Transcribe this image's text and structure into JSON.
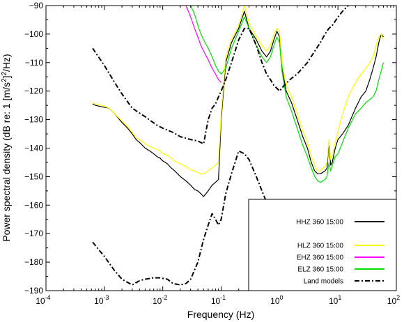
{
  "chart_data": {
    "type": "line",
    "xscale": "log",
    "xlim": [
      0.0001,
      100
    ],
    "ylim": [
      -190,
      -90
    ],
    "xlabel": "Frequency (Hz)",
    "ylabel_prefix": "Power spectral density (dB re: 1 [m/s",
    "ylabel_sup": "2",
    "ylabel_mid": "]",
    "ylabel_sup2": "2",
    "ylabel_suffix": "/Hz)",
    "x_tick_bases": [
      "10",
      "10",
      "10",
      "10",
      "10",
      "10",
      "10"
    ],
    "x_tick_exps": [
      "-4",
      "-3",
      "-2",
      "-1",
      "0",
      "1",
      "2"
    ],
    "y_ticks": [
      -90,
      -100,
      -110,
      -120,
      -130,
      -140,
      -150,
      -160,
      -170,
      -180,
      -190
    ],
    "grid": false,
    "legend_position": "lower-right",
    "series": [
      {
        "name": "HHZ 360 15:00",
        "color": "#000000",
        "style": "solid",
        "x": [
          0.00063,
          0.0007,
          0.0009,
          0.0012,
          0.0015,
          0.002,
          0.0025,
          0.003,
          0.0035,
          0.004,
          0.005,
          0.006,
          0.007,
          0.008,
          0.009,
          0.01,
          0.012,
          0.014,
          0.016,
          0.018,
          0.02,
          0.025,
          0.03,
          0.035,
          0.04,
          0.045,
          0.05,
          0.06,
          0.07,
          0.08,
          0.09,
          0.1,
          0.12,
          0.15,
          0.2,
          0.25,
          0.3,
          0.4,
          0.5,
          0.6,
          0.7,
          0.8,
          0.9,
          1.0,
          1.1,
          1.3,
          1.6,
          2.0,
          2.5,
          3.0,
          3.5,
          4.0,
          4.5,
          5.0,
          5.5,
          6.0,
          6.5,
          7.0,
          7.5,
          8.0,
          9.0,
          10,
          12,
          15,
          20,
          25,
          30,
          35,
          40,
          45,
          50,
          55,
          60
        ],
        "y": [
          -124.5,
          -125,
          -125.5,
          -126,
          -128,
          -131,
          -133,
          -135,
          -137,
          -138,
          -140,
          -141,
          -142,
          -143,
          -143.5,
          -144.5,
          -145.5,
          -147,
          -148,
          -149,
          -150,
          -151.5,
          -153,
          -154.5,
          -155,
          -156,
          -157,
          -155,
          -153,
          -152,
          -151,
          -130,
          -110,
          -103,
          -98,
          -92,
          -98,
          -102,
          -106,
          -108,
          -106,
          -102,
          -99,
          -101,
          -112,
          -120,
          -124,
          -130,
          -136,
          -140,
          -145,
          -148,
          -149,
          -149,
          -148.5,
          -148,
          -147,
          -138,
          -146,
          -145,
          -140,
          -137,
          -135,
          -132,
          -126,
          -122,
          -120,
          -116,
          -112,
          -108,
          -103,
          -100,
          -101
        ]
      },
      {
        "name": "HLZ 360 15:00",
        "color": "#ffff00",
        "style": "solid",
        "x": [
          0.00063,
          0.0007,
          0.0009,
          0.0012,
          0.0015,
          0.002,
          0.0025,
          0.003,
          0.0035,
          0.004,
          0.005,
          0.006,
          0.007,
          0.008,
          0.009,
          0.01,
          0.012,
          0.014,
          0.016,
          0.018,
          0.02,
          0.025,
          0.03,
          0.035,
          0.04,
          0.045,
          0.05,
          0.06,
          0.07,
          0.08,
          0.09,
          0.1,
          0.12,
          0.15,
          0.2,
          0.25,
          0.3,
          0.4,
          0.5,
          0.6,
          0.7,
          0.8,
          0.9,
          1.0,
          1.1,
          1.3,
          1.6,
          2.0,
          2.5,
          3.0,
          3.5,
          4.0,
          4.5,
          5.0,
          5.5,
          6.0,
          6.5,
          7.0,
          7.5,
          8.0,
          9.0,
          10,
          12,
          15,
          20,
          25,
          30,
          35,
          40,
          45,
          50,
          55,
          60
        ],
        "y": [
          -124,
          -124.5,
          -125,
          -126,
          -128,
          -130.5,
          -132.5,
          -134.5,
          -136.5,
          -137,
          -138.5,
          -139.5,
          -140,
          -140.5,
          -141,
          -142,
          -142.5,
          -143.5,
          -144.5,
          -145,
          -145.5,
          -146.5,
          -147.5,
          -148,
          -148.5,
          -149,
          -149,
          -148,
          -147,
          -146,
          -145,
          -128,
          -108,
          -102,
          -97,
          -90,
          -96,
          -101,
          -104,
          -106,
          -104,
          -100,
          -98,
          -99,
          -110,
          -118,
          -122,
          -128,
          -134,
          -138,
          -143,
          -146,
          -148,
          -148,
          -147,
          -146.5,
          -145,
          -137,
          -144,
          -143,
          -138,
          -134,
          -128,
          -122,
          -117,
          -114,
          -112,
          -110,
          -108,
          -104,
          -101,
          -100,
          -102
        ]
      },
      {
        "name": "EHZ 360 15:00",
        "color": "#ff00ff",
        "style": "solid",
        "x": [
          0.025,
          0.03,
          0.035,
          0.04,
          0.045,
          0.05,
          0.06,
          0.07,
          0.08,
          0.09,
          0.1
        ],
        "y": [
          -90,
          -94,
          -98,
          -101,
          -104,
          -106,
          -109,
          -112,
          -114,
          -116,
          -117
        ]
      },
      {
        "name": "ELZ 360 15:00",
        "color": "#00dd00",
        "style": "solid",
        "x": [
          0.03,
          0.035,
          0.04,
          0.045,
          0.05,
          0.06,
          0.07,
          0.08,
          0.09,
          0.1,
          0.12,
          0.15,
          0.2,
          0.25,
          0.3,
          0.4,
          0.5,
          0.6,
          0.7,
          0.8,
          0.9,
          1.0,
          1.1,
          1.3,
          1.6,
          2.0,
          2.5,
          3.0,
          3.5,
          4.0,
          4.5,
          5.0,
          5.5,
          6.0,
          6.5,
          7.0,
          7.5,
          8.0,
          9.0,
          10,
          12,
          15,
          20,
          25,
          30,
          35,
          40,
          45,
          50,
          55,
          60
        ],
        "y": [
          -90,
          -93,
          -97,
          -100,
          -102,
          -105,
          -108,
          -111,
          -113,
          -114,
          -112,
          -105,
          -99,
          -94,
          -98,
          -104,
          -108,
          -110,
          -108,
          -104,
          -101,
          -103,
          -113,
          -122,
          -127,
          -133,
          -139,
          -143,
          -147,
          -150,
          -151.5,
          -152,
          -151.5,
          -151,
          -150,
          -145,
          -148,
          -146,
          -143,
          -142,
          -138,
          -133,
          -128,
          -126,
          -124,
          -123,
          -122,
          -120,
          -116,
          -113,
          -110
        ]
      },
      {
        "name": "Land models",
        "color": "#000000",
        "style": "dashdot",
        "segments": [
          {
            "x": [
              0.00063,
              0.001,
              0.0015,
              0.002,
              0.003,
              0.005,
              0.008,
              0.01,
              0.015,
              0.02,
              0.03,
              0.04,
              0.05,
              0.06,
              0.07,
              0.08,
              0.09,
              0.1,
              0.12,
              0.15,
              0.2,
              0.25,
              0.3,
              0.4,
              0.5,
              0.6,
              0.7,
              0.8,
              0.9,
              1.0,
              1.2,
              1.5,
              2.0,
              3.0,
              4.0,
              5.0,
              6.0,
              7.0,
              8.0,
              10,
              12,
              15
            ],
            "y": [
              -105,
              -111,
              -117,
              -121,
              -126,
              -129,
              -132,
              -133,
              -134.5,
              -136,
              -137,
              -137.5,
              -138.5,
              -130,
              -126,
              -124.5,
              -122,
              -120,
              -116,
              -110,
              -102,
              -98,
              -98,
              -104,
              -110,
              -114,
              -116,
              -118,
              -119,
              -120,
              -118,
              -116,
              -114,
              -110,
              -106,
              -103,
              -100,
              -98,
              -97,
              -94,
              -92,
              -90
            ]
          },
          {
            "x": [
              0.00063,
              0.001,
              0.0015,
              0.002,
              0.003,
              0.004,
              0.005,
              0.007,
              0.009,
              0.012,
              0.015,
              0.02,
              0.025,
              0.03,
              0.04,
              0.05,
              0.06,
              0.07,
              0.08,
              0.09,
              0.1,
              0.12,
              0.15,
              0.2,
              0.25,
              0.3,
              0.4,
              0.5,
              0.6,
              0.7
            ],
            "y": [
              -173,
              -178,
              -183,
              -186,
              -188,
              -186.5,
              -186,
              -185.5,
              -185.5,
              -186,
              -187.5,
              -188,
              -187.5,
              -186,
              -180,
              -172,
              -167,
              -163,
              -165,
              -167,
              -165,
              -156,
              -149,
              -141,
              -142,
              -144,
              -150,
              -155,
              -159,
              -162
            ]
          }
        ]
      }
    ]
  },
  "legend": {
    "entries": [
      {
        "label": "HHZ 360 15:00",
        "color": "#000000",
        "style": "solid",
        "gap_after": true
      },
      {
        "label": "HLZ 360 15:00",
        "color": "#ffff00",
        "style": "solid"
      },
      {
        "label": "EHZ 360 15:00",
        "color": "#ff00ff",
        "style": "solid"
      },
      {
        "label": "ELZ 360 15:00",
        "color": "#00dd00",
        "style": "solid"
      },
      {
        "label": "Land models",
        "color": "#000000",
        "style": "dashdot"
      }
    ]
  }
}
